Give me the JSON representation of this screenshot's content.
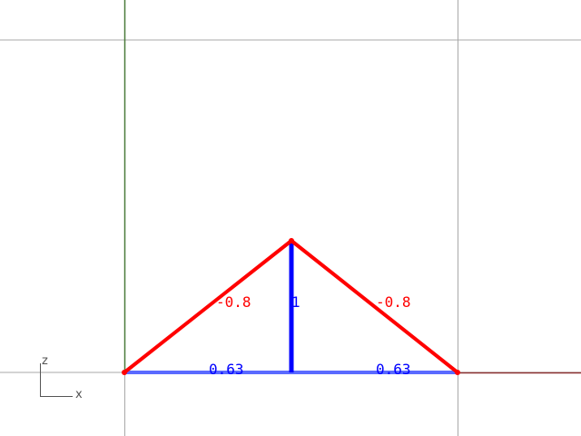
{
  "colors": {
    "background": "#ffffff",
    "grid": "#a8a8a8",
    "z_axis": "#4a7a3a",
    "x_axis": "#8a3030",
    "compression_member": "#ff0000",
    "tension_member": "#0000ff",
    "bottom_chord": "#5a6aff"
  },
  "members": [
    {
      "id": "left-rafter",
      "force": "-0.8",
      "kind": "compression"
    },
    {
      "id": "right-rafter",
      "force": "-0.8",
      "kind": "compression"
    },
    {
      "id": "king-post",
      "force": "1",
      "kind": "tension"
    },
    {
      "id": "left-bottom-chord",
      "force": "0.63",
      "kind": "tension"
    },
    {
      "id": "right-bottom-chord",
      "force": "0.63",
      "kind": "tension"
    }
  ],
  "axis_gizmo": {
    "vertical": "z",
    "horizontal": "x"
  }
}
